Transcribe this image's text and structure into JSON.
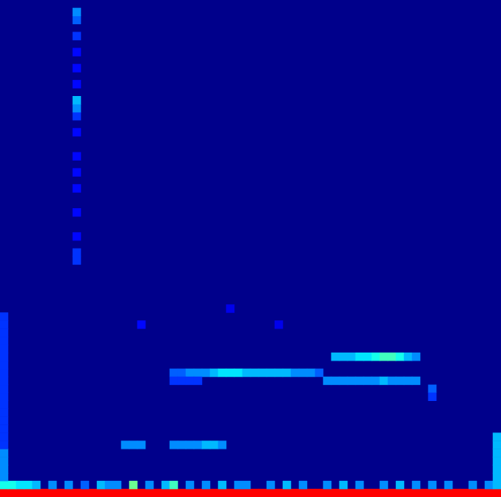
{
  "chart_data": {
    "type": "heatmap",
    "tick_labels": false,
    "x": [
      0,
      1,
      2,
      3,
      4,
      5,
      6,
      7,
      8,
      9,
      10,
      11,
      12,
      13,
      14,
      15,
      16,
      17,
      18,
      19,
      20,
      21,
      22,
      23,
      24,
      25,
      26,
      27,
      28,
      29,
      30,
      31,
      32,
      33,
      34,
      35,
      36,
      37,
      38,
      39,
      40,
      41,
      42,
      43,
      44,
      45,
      46,
      47,
      48,
      49,
      50,
      51,
      52,
      53,
      54,
      55,
      56,
      57,
      58,
      59,
      60,
      61
    ],
    "y": [
      0,
      1,
      2,
      3,
      4,
      5,
      6,
      7,
      8,
      9,
      10,
      11,
      12,
      13,
      14,
      15,
      16,
      17,
      18,
      19,
      20,
      21,
      22,
      23,
      24,
      25,
      26,
      27,
      28,
      29,
      30,
      31,
      32,
      33,
      34,
      35,
      36,
      37,
      38,
      39,
      40,
      41,
      42,
      43,
      44,
      45,
      46,
      47,
      48,
      49,
      50,
      51,
      52,
      53,
      54,
      55,
      56,
      57,
      58,
      59,
      60,
      61
    ],
    "color_range": [
      0,
      1
    ],
    "cells": [
      [
        0,
        0,
        1
      ],
      [
        1,
        0,
        1
      ],
      [
        2,
        0,
        1
      ],
      [
        3,
        0,
        1
      ],
      [
        4,
        0,
        1
      ],
      [
        5,
        0,
        1
      ],
      [
        6,
        0,
        1
      ],
      [
        7,
        0,
        1
      ],
      [
        8,
        0,
        1
      ],
      [
        9,
        0,
        1
      ],
      [
        10,
        0,
        1
      ],
      [
        11,
        0,
        1
      ],
      [
        12,
        0,
        1
      ],
      [
        13,
        0,
        1
      ],
      [
        14,
        0,
        1
      ],
      [
        15,
        0,
        1
      ],
      [
        16,
        0,
        1
      ],
      [
        17,
        0,
        1
      ],
      [
        18,
        0,
        1
      ],
      [
        19,
        0,
        1
      ],
      [
        20,
        0,
        1
      ],
      [
        21,
        0,
        1
      ],
      [
        22,
        0,
        1
      ],
      [
        23,
        0,
        1
      ],
      [
        24,
        0,
        1
      ],
      [
        25,
        0,
        1
      ],
      [
        26,
        0,
        1
      ],
      [
        27,
        0,
        1
      ],
      [
        28,
        0,
        1
      ],
      [
        29,
        0,
        1
      ],
      [
        30,
        0,
        1
      ],
      [
        31,
        0,
        1
      ],
      [
        32,
        0,
        1
      ],
      [
        33,
        0,
        1
      ],
      [
        34,
        0,
        1
      ],
      [
        35,
        0,
        1
      ],
      [
        36,
        0,
        1
      ],
      [
        37,
        0,
        1
      ],
      [
        38,
        0,
        1
      ],
      [
        39,
        0,
        1
      ],
      [
        40,
        0,
        1
      ],
      [
        41,
        0,
        1
      ],
      [
        42,
        0,
        1
      ],
      [
        43,
        0,
        1
      ],
      [
        44,
        0,
        1
      ],
      [
        45,
        0,
        1
      ],
      [
        46,
        0,
        1
      ],
      [
        47,
        0,
        1
      ],
      [
        48,
        0,
        1
      ],
      [
        49,
        0,
        1
      ],
      [
        50,
        0,
        1
      ],
      [
        51,
        0,
        1
      ],
      [
        52,
        0,
        1
      ],
      [
        53,
        0,
        1
      ],
      [
        54,
        0,
        1
      ],
      [
        55,
        0,
        1
      ],
      [
        56,
        0,
        1
      ],
      [
        57,
        0,
        1
      ],
      [
        58,
        0,
        1
      ],
      [
        59,
        0,
        1
      ],
      [
        60,
        0,
        1
      ],
      [
        61,
        0,
        1
      ],
      [
        0,
        1,
        0.45
      ],
      [
        1,
        1,
        0.45
      ],
      [
        2,
        1,
        0.4
      ],
      [
        3,
        1,
        0.4
      ],
      [
        4,
        1,
        0.35
      ],
      [
        6,
        1,
        0.3
      ],
      [
        8,
        1,
        0.3
      ],
      [
        10,
        1,
        0.25
      ],
      [
        12,
        1,
        0.35
      ],
      [
        13,
        1,
        0.3
      ],
      [
        14,
        1,
        0.3
      ],
      [
        16,
        1,
        0.55
      ],
      [
        18,
        1,
        0.3
      ],
      [
        20,
        1,
        0.35
      ],
      [
        21,
        1,
        0.5
      ],
      [
        23,
        1,
        0.3
      ],
      [
        25,
        1,
        0.3
      ],
      [
        27,
        1,
        0.35
      ],
      [
        29,
        1,
        0.3
      ],
      [
        30,
        1,
        0.3
      ],
      [
        33,
        1,
        0.3
      ],
      [
        35,
        1,
        0.35
      ],
      [
        37,
        1,
        0.3
      ],
      [
        40,
        1,
        0.3
      ],
      [
        42,
        1,
        0.35
      ],
      [
        44,
        1,
        0.3
      ],
      [
        47,
        1,
        0.3
      ],
      [
        49,
        1,
        0.35
      ],
      [
        51,
        1,
        0.3
      ],
      [
        53,
        1,
        0.3
      ],
      [
        55,
        1,
        0.3
      ],
      [
        58,
        1,
        0.3
      ],
      [
        60,
        1,
        0.3
      ],
      [
        61,
        1,
        0.35
      ],
      [
        0,
        2,
        0.3
      ],
      [
        0,
        3,
        0.3
      ],
      [
        0,
        4,
        0.3
      ],
      [
        0,
        5,
        0.3
      ],
      [
        0,
        6,
        0.2
      ],
      [
        0,
        7,
        0.2
      ],
      [
        0,
        8,
        0.2
      ],
      [
        0,
        9,
        0.2
      ],
      [
        0,
        10,
        0.2
      ],
      [
        0,
        11,
        0.2
      ],
      [
        0,
        12,
        0.2
      ],
      [
        0,
        13,
        0.2
      ],
      [
        0,
        14,
        0.2
      ],
      [
        0,
        15,
        0.2
      ],
      [
        0,
        16,
        0.2
      ],
      [
        0,
        17,
        0.2
      ],
      [
        0,
        18,
        0.2
      ],
      [
        0,
        19,
        0.2
      ],
      [
        0,
        20,
        0.2
      ],
      [
        0,
        21,
        0.2
      ],
      [
        0,
        22,
        0.2
      ],
      [
        61,
        2,
        0.35
      ],
      [
        61,
        3,
        0.35
      ],
      [
        61,
        4,
        0.35
      ],
      [
        61,
        5,
        0.35
      ],
      [
        61,
        6,
        0.35
      ],
      [
        61,
        7,
        0.35
      ],
      [
        21,
        15,
        0.25
      ],
      [
        22,
        15,
        0.25
      ],
      [
        23,
        15,
        0.3
      ],
      [
        24,
        15,
        0.3
      ],
      [
        25,
        15,
        0.3
      ],
      [
        26,
        15,
        0.35
      ],
      [
        27,
        15,
        0.4
      ],
      [
        28,
        15,
        0.4
      ],
      [
        29,
        15,
        0.4
      ],
      [
        30,
        15,
        0.35
      ],
      [
        31,
        15,
        0.35
      ],
      [
        32,
        15,
        0.35
      ],
      [
        33,
        15,
        0.35
      ],
      [
        34,
        15,
        0.35
      ],
      [
        35,
        15,
        0.35
      ],
      [
        36,
        15,
        0.3
      ],
      [
        37,
        15,
        0.3
      ],
      [
        38,
        15,
        0.3
      ],
      [
        39,
        15,
        0.25
      ],
      [
        21,
        14,
        0.2
      ],
      [
        22,
        14,
        0.2
      ],
      [
        23,
        14,
        0.2
      ],
      [
        24,
        14,
        0.2
      ],
      [
        40,
        14,
        0.3
      ],
      [
        41,
        14,
        0.3
      ],
      [
        42,
        14,
        0.3
      ],
      [
        43,
        14,
        0.3
      ],
      [
        44,
        14,
        0.3
      ],
      [
        45,
        14,
        0.3
      ],
      [
        46,
        14,
        0.3
      ],
      [
        47,
        14,
        0.35
      ],
      [
        48,
        14,
        0.3
      ],
      [
        49,
        14,
        0.3
      ],
      [
        50,
        14,
        0.3
      ],
      [
        51,
        14,
        0.3
      ],
      [
        41,
        17,
        0.35
      ],
      [
        42,
        17,
        0.35
      ],
      [
        43,
        17,
        0.35
      ],
      [
        44,
        17,
        0.4
      ],
      [
        45,
        17,
        0.4
      ],
      [
        46,
        17,
        0.45
      ],
      [
        47,
        17,
        0.5
      ],
      [
        48,
        17,
        0.5
      ],
      [
        49,
        17,
        0.45
      ],
      [
        50,
        17,
        0.35
      ],
      [
        51,
        17,
        0.3
      ],
      [
        15,
        6,
        0.3
      ],
      [
        16,
        6,
        0.3
      ],
      [
        17,
        6,
        0.3
      ],
      [
        21,
        6,
        0.3
      ],
      [
        22,
        6,
        0.3
      ],
      [
        23,
        6,
        0.3
      ],
      [
        24,
        6,
        0.3
      ],
      [
        25,
        6,
        0.35
      ],
      [
        26,
        6,
        0.35
      ],
      [
        27,
        6,
        0.3
      ],
      [
        53,
        13,
        0.25
      ],
      [
        53,
        12,
        0.2
      ],
      [
        9,
        29,
        0.2
      ],
      [
        9,
        30,
        0.2
      ],
      [
        9,
        32,
        0.15
      ],
      [
        9,
        35,
        0.15
      ],
      [
        9,
        38,
        0.15
      ],
      [
        9,
        40,
        0.15
      ],
      [
        9,
        42,
        0.15
      ],
      [
        9,
        45,
        0.15
      ],
      [
        9,
        47,
        0.2
      ],
      [
        9,
        48,
        0.3
      ],
      [
        9,
        49,
        0.35
      ],
      [
        9,
        51,
        0.15
      ],
      [
        9,
        53,
        0.15
      ],
      [
        9,
        55,
        0.15
      ],
      [
        9,
        57,
        0.2
      ],
      [
        9,
        59,
        0.25
      ],
      [
        9,
        60,
        0.3
      ],
      [
        17,
        21,
        0.15
      ],
      [
        28,
        23,
        0.12
      ],
      [
        34,
        21,
        0.12
      ]
    ]
  }
}
